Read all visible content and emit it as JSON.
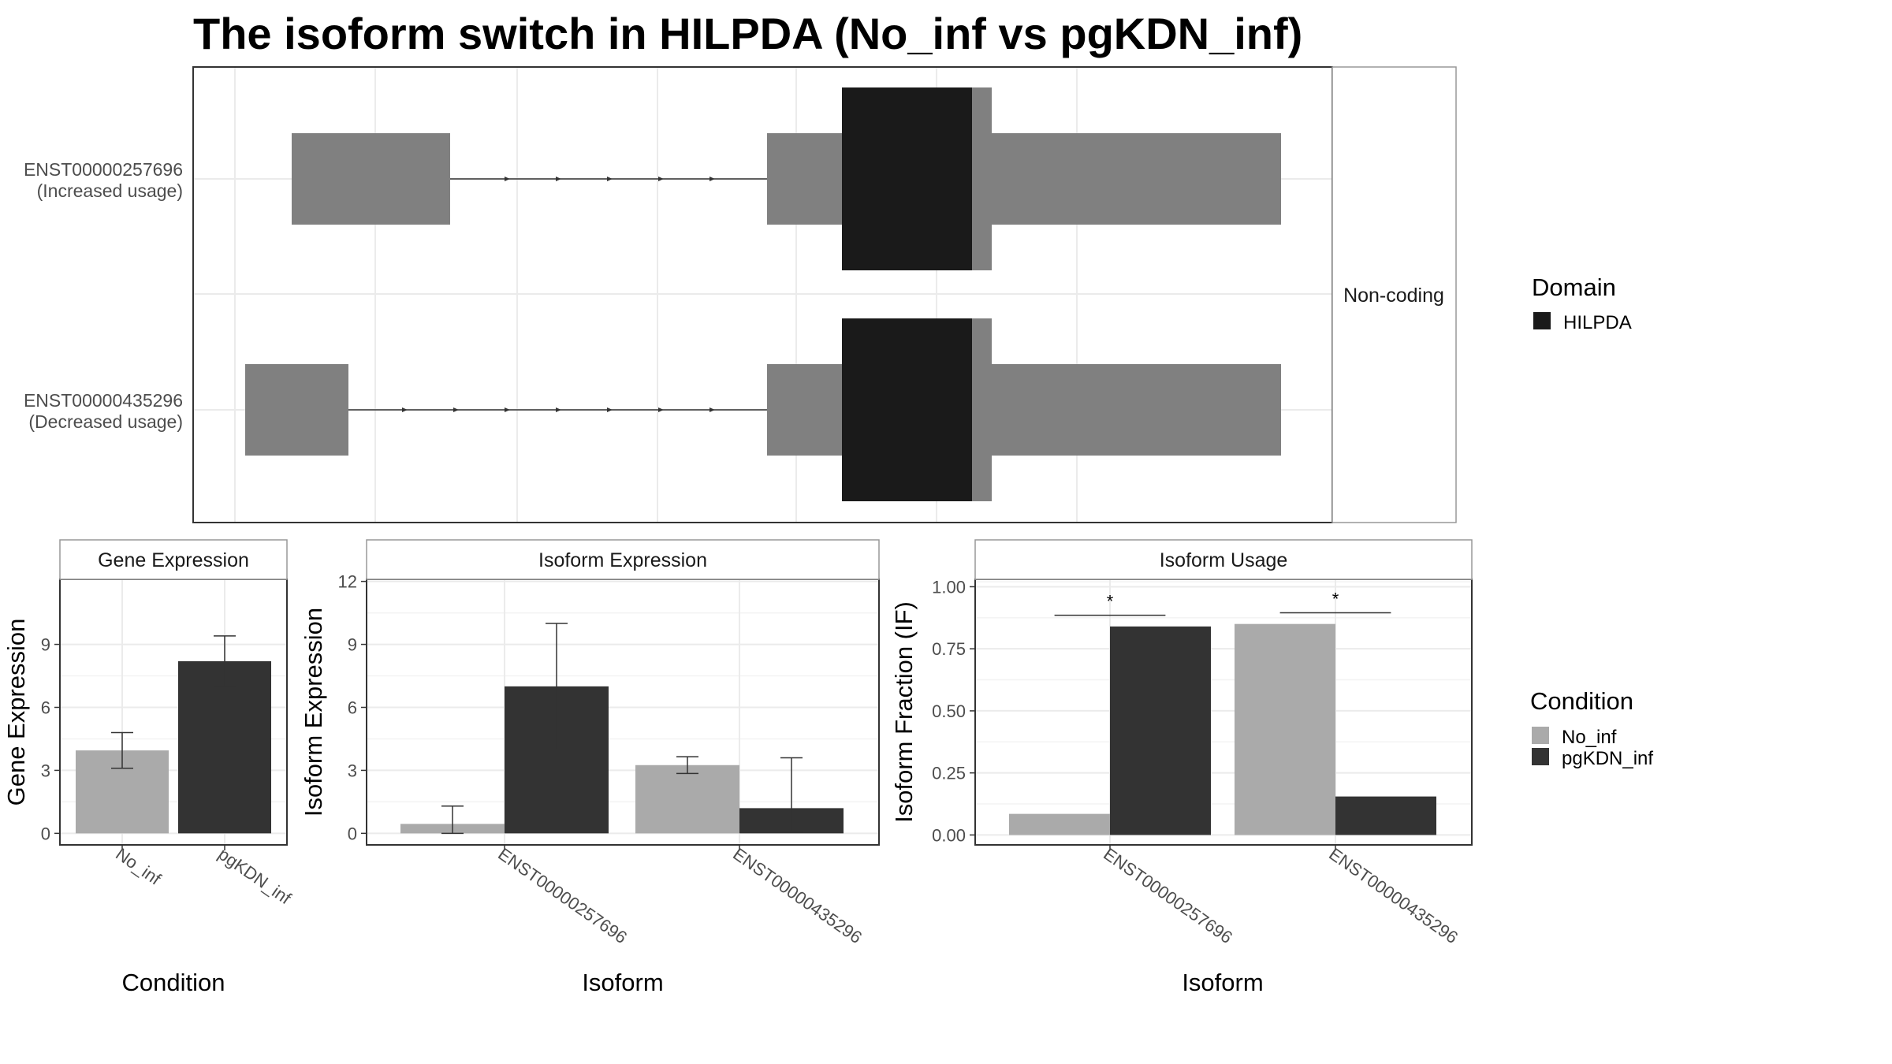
{
  "title": "The isoform switch in HILPDA (No_inf vs pgKDN_inf)",
  "colors": {
    "no_inf": "#aaaaaa",
    "pgkdn_inf": "#333333",
    "exon": "#808080",
    "domain": "#1a1a1a",
    "grid": "#ebebeb",
    "panel_border": "#333333",
    "strip_border": "#333333"
  },
  "isoform_plot": {
    "facet_label": "Non-coding",
    "isoforms": [
      {
        "line1": "ENST00000257696",
        "line2": "(Increased usage)"
      },
      {
        "line1": "ENST00000435296",
        "line2": "(Decreased usage)"
      }
    ],
    "legend": {
      "title": "Domain",
      "items": [
        {
          "label": "HILPDA",
          "color": "#1a1a1a"
        }
      ]
    }
  },
  "chart_data": [
    {
      "type": "bar",
      "panel_title": "Gene Expression",
      "xlabel": "Condition",
      "ylabel": "Gene Expression",
      "categories": [
        "No_inf",
        "pgKDN_inf"
      ],
      "values": [
        3.95,
        8.2
      ],
      "errors": [
        [
          3.1,
          4.8
        ],
        [
          7.0,
          9.4
        ]
      ],
      "ylim": [
        -0.55,
        12.1
      ],
      "yticks": [
        0,
        3,
        6,
        9
      ],
      "grid": true
    },
    {
      "type": "bar",
      "panel_title": "Isoform Expression",
      "xlabel": "Isoform",
      "ylabel": "Isoform Expression",
      "categories": [
        "ENST00000257696",
        "ENST00000435296"
      ],
      "series": [
        {
          "name": "No_inf",
          "values": [
            0.45,
            3.25
          ],
          "errors": [
            [
              0.0,
              1.3
            ],
            [
              2.85,
              3.65
            ]
          ]
        },
        {
          "name": "pgKDN_inf",
          "values": [
            7.0,
            1.2
          ],
          "errors": [
            [
              4.0,
              10.0
            ],
            [
              0.05,
              3.6
            ]
          ]
        }
      ],
      "ylim": [
        -0.55,
        12.1
      ],
      "yticks": [
        0,
        3,
        6,
        9,
        12
      ],
      "grid": true
    },
    {
      "type": "bar",
      "panel_title": "Isoform Usage",
      "xlabel": "Isoform",
      "ylabel": "Isoform Fraction (IF)",
      "categories": [
        "ENST00000257696",
        "ENST00000435296"
      ],
      "series": [
        {
          "name": "No_inf",
          "values": [
            0.085,
            0.85
          ]
        },
        {
          "name": "pgKDN_inf",
          "values": [
            0.84,
            0.155
          ]
        }
      ],
      "significance": [
        "*",
        "*"
      ],
      "ylim": [
        -0.04,
        1.03
      ],
      "yticks": [
        0.0,
        0.25,
        0.5,
        0.75,
        1.0
      ],
      "ytick_labels": [
        "0.00",
        "0.25",
        "0.50",
        "0.75",
        "1.00"
      ],
      "grid": true
    }
  ],
  "condition_legend": {
    "title": "Condition",
    "items": [
      {
        "label": "No_inf",
        "color": "#aaaaaa"
      },
      {
        "label": "pgKDN_inf",
        "color": "#333333"
      }
    ]
  }
}
